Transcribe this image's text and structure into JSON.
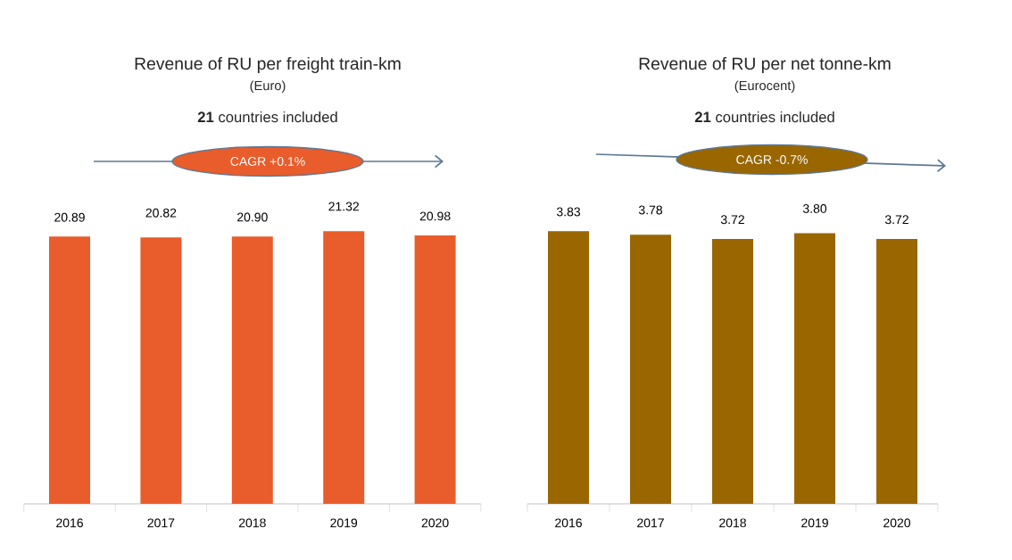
{
  "chart_data": [
    {
      "type": "bar",
      "title": "Revenue of RU per freight train-km",
      "subtitle": "(Euro)",
      "annotations": [
        "**21** countries included",
        "CAGR +0.1%"
      ],
      "categories": [
        "2016",
        "2017",
        "2018",
        "2019",
        "2020"
      ],
      "values": [
        20.89,
        20.82,
        20.9,
        21.32,
        20.98
      ],
      "value_labels": [
        "20.89",
        "20.82",
        "20.90",
        "21.32",
        "20.98"
      ],
      "color": "#e95c2b"
    },
    {
      "type": "bar",
      "title": "Revenue of RU per net tonne-km",
      "subtitle": "(Eurocent)",
      "annotations": [
        "**21** countries included",
        "CAGR -0.7%"
      ],
      "categories": [
        "2016",
        "2017",
        "2018",
        "2019",
        "2020"
      ],
      "values": [
        3.83,
        3.78,
        3.72,
        3.8,
        3.72
      ],
      "value_labels": [
        "3.83",
        "3.78",
        "3.72",
        "3.80",
        "3.72"
      ],
      "color": "#996600"
    }
  ]
}
